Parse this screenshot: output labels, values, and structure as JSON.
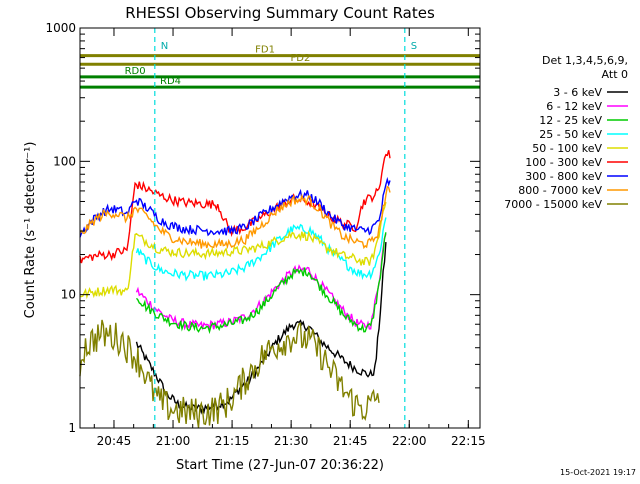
{
  "chart_data": {
    "type": "line",
    "title": "RHESSI Observing Summary Count Rates",
    "xlabel": "Start Time (27-Jun-07 20:36:22)",
    "ylabel": "Count Rate (s⁻¹ detector⁻¹)",
    "yscale": "log",
    "ylim": [
      1,
      1000
    ],
    "xlim_minutes": [
      0,
      101.6
    ],
    "x_ticks": [
      {
        "label": "20:45",
        "minute": 8.63
      },
      {
        "label": "21:00",
        "minute": 23.63
      },
      {
        "label": "21:15",
        "minute": 38.63
      },
      {
        "label": "21:30",
        "minute": 53.63
      },
      {
        "label": "21:45",
        "minute": 68.63
      },
      {
        "label": "22:00",
        "minute": 83.63
      },
      {
        "label": "22:15",
        "minute": 98.63
      }
    ],
    "y_ticks": [
      {
        "label": "1",
        "value": 1
      },
      {
        "label": "10",
        "value": 10
      },
      {
        "label": "100",
        "value": 100
      },
      {
        "label": "1000",
        "value": 1000
      }
    ],
    "legend": {
      "header": [
        "Det 1,3,4,5,6,9,",
        "Att 0"
      ],
      "placement": "right"
    },
    "series": [
      {
        "name": "3 - 6 keV",
        "color": "#000000",
        "x": [
          0,
          4,
          8,
          12,
          14,
          17,
          20,
          22,
          25,
          28,
          31,
          35,
          38,
          40,
          43,
          46,
          50,
          54,
          58,
          61,
          64,
          67,
          70,
          72,
          74,
          75,
          76,
          77,
          78,
          80
        ],
        "y": [
          null,
          null,
          null,
          null,
          4.5,
          3.2,
          2.3,
          1.8,
          1.5,
          1.4,
          1.4,
          1.5,
          1.6,
          1.9,
          2.3,
          3,
          4.5,
          6,
          5.8,
          4.5,
          3.8,
          3.2,
          2.8,
          2.6,
          2.5,
          2.8,
          6,
          14,
          30,
          null
        ]
      },
      {
        "name": "6 - 12 keV",
        "color": "#ff00ff",
        "x": [
          0,
          4,
          8,
          12,
          14,
          17,
          20,
          23,
          27,
          31,
          35,
          38,
          42,
          46,
          50,
          54,
          58,
          61,
          64,
          67,
          70,
          72,
          74,
          76,
          77,
          78,
          80
        ],
        "y": [
          null,
          null,
          null,
          null,
          11,
          9,
          7.5,
          6.5,
          6,
          5.8,
          6,
          6.2,
          6.8,
          8.5,
          11.5,
          15,
          15.5,
          12,
          9.5,
          7.5,
          6.2,
          5.8,
          6,
          13,
          22,
          35,
          null
        ]
      },
      {
        "name": "12 - 25 keV",
        "color": "#00cc00",
        "x": [
          0,
          4,
          8,
          12,
          14,
          17,
          20,
          23,
          27,
          31,
          35,
          38,
          42,
          46,
          50,
          54,
          58,
          61,
          64,
          67,
          70,
          72,
          74,
          76,
          77,
          78,
          80
        ],
        "y": [
          null,
          null,
          null,
          null,
          10,
          8,
          7,
          6.3,
          5.8,
          5.6,
          5.8,
          6,
          6.5,
          8,
          11,
          14.5,
          15,
          11.5,
          9,
          7,
          6,
          5.5,
          5.8,
          12,
          21,
          33,
          null
        ]
      },
      {
        "name": "25 - 50 keV",
        "color": "#00ffff",
        "x": [
          0,
          3,
          6,
          9,
          12,
          14,
          17,
          20,
          23,
          27,
          31,
          35,
          38,
          42,
          46,
          50,
          54,
          58,
          61,
          64,
          67,
          70,
          72,
          74,
          76,
          77,
          78,
          80
        ],
        "y": [
          null,
          null,
          null,
          null,
          null,
          22,
          18,
          15.5,
          14.5,
          14,
          13.8,
          14,
          14.5,
          16,
          19.5,
          25,
          31,
          31,
          26,
          20.5,
          17.5,
          15,
          14.2,
          14.5,
          20,
          30,
          42,
          null
        ]
      },
      {
        "name": "50 - 100 keV",
        "color": "#dddd00",
        "x": [
          0,
          4,
          8,
          12,
          14,
          17,
          20,
          23,
          27,
          31,
          35,
          38,
          42,
          46,
          50,
          54,
          58,
          61,
          64,
          67,
          70,
          72,
          74,
          76,
          77,
          78,
          80
        ],
        "y": [
          10,
          10.5,
          11,
          10.5,
          28,
          25,
          22,
          21,
          20.5,
          20.3,
          20.5,
          21,
          21.5,
          23,
          25.5,
          28.5,
          27.5,
          24,
          21.5,
          19.5,
          18.5,
          17.5,
          17.8,
          28,
          45,
          55,
          null
        ]
      },
      {
        "name": "100 - 300 keV",
        "color": "#ff0000",
        "x": [
          0,
          2,
          4,
          6,
          8,
          10,
          12,
          14,
          17,
          20,
          23,
          25,
          27,
          31,
          35,
          38,
          42,
          46,
          50,
          54,
          58,
          61,
          64,
          67,
          70,
          72,
          74,
          76,
          77,
          78,
          79,
          80
        ],
        "y": [
          18,
          19,
          19.5,
          20,
          20,
          21,
          21.5,
          68,
          62,
          56,
          52,
          50,
          49,
          48,
          47.5,
          30,
          32,
          38,
          45,
          52,
          50,
          44,
          38,
          34,
          32,
          50,
          54,
          60,
          100,
          115,
          110,
          null
        ]
      },
      {
        "name": "300 - 800 keV",
        "color": "#0000ff",
        "x": [
          0,
          2,
          4,
          6,
          8,
          10,
          12,
          14,
          17,
          20,
          23,
          27,
          31,
          35,
          38,
          42,
          46,
          50,
          54,
          58,
          61,
          64,
          67,
          70,
          72,
          74,
          76,
          77,
          78,
          79,
          80
        ],
        "y": [
          28,
          33,
          38,
          42,
          44,
          43,
          40,
          52,
          45,
          37,
          33,
          31,
          30.5,
          30,
          30,
          32,
          39,
          47,
          55,
          56,
          48,
          38,
          33,
          31,
          30,
          31,
          36,
          52,
          70,
          68,
          null
        ]
      },
      {
        "name": "800 - 7000 keV",
        "color": "#ff9900",
        "x": [
          0,
          2,
          4,
          6,
          8,
          10,
          12,
          14,
          17,
          20,
          23,
          27,
          31,
          35,
          38,
          42,
          46,
          50,
          54,
          58,
          61,
          64,
          67,
          70,
          72,
          74,
          76,
          77,
          78,
          79,
          80
        ],
        "y": [
          28,
          32,
          37,
          40,
          41,
          40,
          37,
          44,
          39,
          31,
          27,
          25,
          24,
          23.8,
          24,
          26,
          33,
          43,
          51,
          52,
          43,
          33,
          27,
          25,
          24,
          24.5,
          30,
          45,
          60,
          58,
          null
        ]
      },
      {
        "name": "7000 - 15000 keV",
        "color": "#808000",
        "x": [
          0,
          1,
          3,
          5,
          7,
          9,
          11,
          12,
          14,
          16,
          18,
          20,
          23,
          27,
          31,
          35,
          38,
          41,
          44,
          47,
          50,
          54,
          58,
          61,
          64,
          67,
          70,
          72,
          74,
          76,
          77,
          78,
          80
        ],
        "y": [
          3,
          4,
          4.5,
          5,
          5,
          4.8,
          4.5,
          4,
          3.5,
          2.8,
          2,
          1.6,
          1.4,
          1.3,
          1.3,
          1.4,
          1.6,
          2.1,
          2.8,
          3.6,
          4.2,
          4.9,
          4.6,
          3.7,
          2.6,
          1.9,
          1.5,
          1.4,
          1.5,
          1.8,
          null,
          null,
          null
        ]
      }
    ],
    "annotations": [
      {
        "label": "N",
        "minute": 19
      },
      {
        "label": "S",
        "minute": 82.5
      }
    ],
    "state_bars": [
      {
        "label": "FD1",
        "x0": 0,
        "x1": 101.6,
        "value": 620,
        "color": "#808000",
        "label_minute": 47
      },
      {
        "label": "FD2",
        "x0": 0,
        "x1": 101.6,
        "value": 535,
        "color": "#808000",
        "label_minute": 56
      },
      {
        "label": "RD0",
        "x0": 0,
        "x1": 101.6,
        "value": 430,
        "color": "#008000",
        "label_minute": 14
      },
      {
        "label": "RD4",
        "x0": 0,
        "x1": 101.6,
        "value": 360,
        "color": "#008000",
        "label_minute": 23
      }
    ],
    "footer_date": "15-Oct-2021 19:17"
  }
}
